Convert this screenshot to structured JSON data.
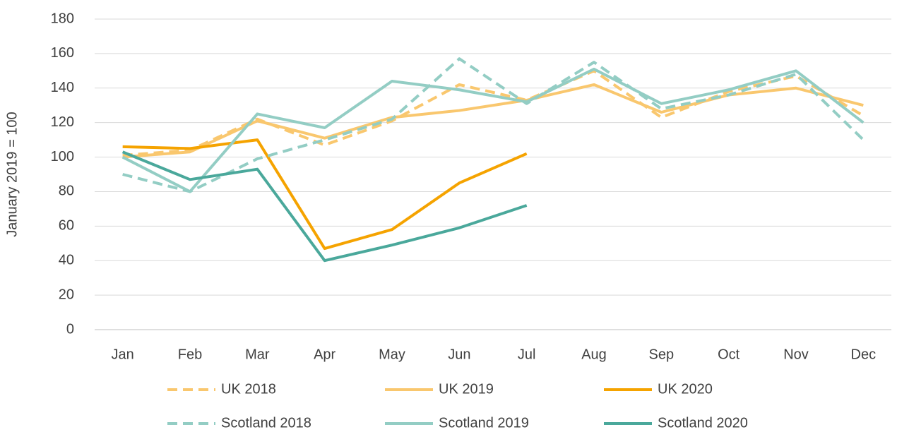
{
  "chart_data": {
    "type": "line",
    "y_label": "January 2019 = 100",
    "categories": [
      "Jan",
      "Feb",
      "Mar",
      "Apr",
      "May",
      "Jun",
      "Jul",
      "Aug",
      "Sep",
      "Oct",
      "Nov",
      "Dec"
    ],
    "series": [
      {
        "name": "UK 2018",
        "color": "#f9c76e",
        "line_style": "dashed",
        "values": [
          101,
          104,
          122,
          107,
          121,
          142,
          133,
          150,
          123,
          138,
          147,
          124
        ]
      },
      {
        "name": "UK 2019",
        "color": "#f9c76e",
        "line_style": "solid",
        "values": [
          100,
          103,
          121,
          111,
          123,
          127,
          133,
          142,
          126,
          136,
          140,
          130
        ]
      },
      {
        "name": "UK 2020",
        "color": "#f5a300",
        "line_style": "solid",
        "values": [
          106,
          105,
          110,
          47,
          58,
          85,
          102,
          null,
          null,
          null,
          null,
          null
        ]
      },
      {
        "name": "Scotland 2018",
        "color": "#93cdc4",
        "line_style": "dashed",
        "values": [
          90,
          80,
          99,
          110,
          122,
          157,
          131,
          155,
          128,
          136,
          148,
          110
        ]
      },
      {
        "name": "Scotland 2019",
        "color": "#93cdc4",
        "line_style": "solid",
        "values": [
          100,
          80,
          125,
          117,
          144,
          139,
          132,
          151,
          131,
          139,
          150,
          120
        ]
      },
      {
        "name": "Scotland 2020",
        "color": "#4aa89b",
        "line_style": "solid",
        "values": [
          103,
          87,
          93,
          40,
          49,
          59,
          72,
          null,
          null,
          null,
          null,
          null
        ]
      }
    ],
    "ylim": [
      0,
      180
    ],
    "yticks": [
      0,
      20,
      40,
      60,
      80,
      100,
      120,
      140,
      160,
      180
    ],
    "grid": true,
    "legend": "bottom"
  }
}
